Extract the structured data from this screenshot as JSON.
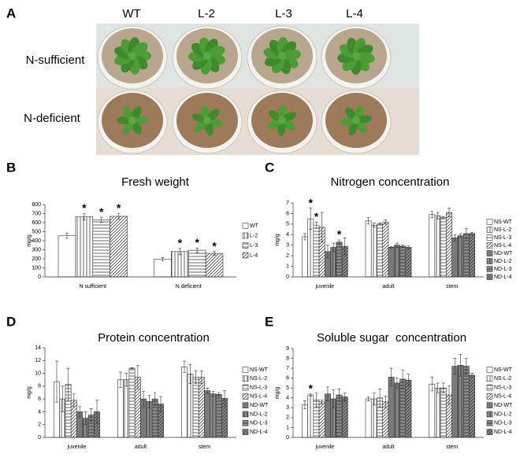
{
  "photo_panel": {
    "panel_label": "A",
    "columns": [
      "WT",
      "L-2",
      "L-3",
      "L-4"
    ],
    "rows": [
      "N-sufficient",
      "N-deficient"
    ]
  },
  "chart_data": [
    {
      "type": "bar",
      "panel_label": "B",
      "title": "Fresh weight",
      "y_label": "mg/g",
      "categories": [
        "N sufficient",
        "N deficient"
      ],
      "series": [
        {
          "name": "WT",
          "color": "#ffffff",
          "pattern": "none",
          "values": [
            455,
            195
          ],
          "error": [
            30,
            20
          ],
          "annotations": [
            null,
            null
          ]
        },
        {
          "name": "L-2",
          "color": "#ffffff",
          "pattern": "vertical",
          "values": [
            665,
            280
          ],
          "error": [
            35,
            35
          ],
          "annotations": [
            "*",
            "*"
          ]
        },
        {
          "name": "L-3",
          "color": "#ffffff",
          "pattern": "horizontal",
          "values": [
            630,
            295
          ],
          "error": [
            30,
            25
          ],
          "annotations": [
            "*",
            "*"
          ]
        },
        {
          "name": "L-4",
          "color": "#ffffff",
          "pattern": "diagonal",
          "values": [
            670,
            260
          ],
          "error": [
            30,
            20
          ],
          "annotations": [
            "*",
            "*"
          ]
        }
      ],
      "ylim": [
        0,
        800
      ],
      "yticks": [
        0,
        100,
        200,
        300,
        400,
        500,
        600,
        700,
        800
      ]
    },
    {
      "type": "bar",
      "panel_label": "C",
      "title": "Nitrogen concentration",
      "y_label": "mg/g",
      "categories": [
        "juvenile",
        "adult",
        "stem"
      ],
      "series": [
        {
          "name": "NS-WT",
          "color": "#ffffff",
          "pattern": "none",
          "values": [
            3.8,
            5.3,
            5.9
          ],
          "error": [
            0.3,
            0.3,
            0.3
          ],
          "annotations": [
            null,
            null,
            null
          ]
        },
        {
          "name": "NS-L-2",
          "color": "#ffffff",
          "pattern": "vertical",
          "values": [
            5.5,
            4.9,
            5.8
          ],
          "error": [
            1.0,
            0.2,
            0.3
          ],
          "annotations": [
            "*",
            null,
            null
          ]
        },
        {
          "name": "NS-L-3",
          "color": "#ffffff",
          "pattern": "horizontal",
          "values": [
            4.9,
            5.0,
            5.6
          ],
          "error": [
            0.3,
            0.1,
            0.1
          ],
          "annotations": [
            "*",
            null,
            null
          ]
        },
        {
          "name": "NS-L-4",
          "color": "#ffffff",
          "pattern": "diagonal",
          "values": [
            4.7,
            5.2,
            6.1
          ],
          "error": [
            1.4,
            0.2,
            0.4
          ],
          "annotations": [
            null,
            null,
            null
          ]
        },
        {
          "name": "ND-WT",
          "color": "#7a7a7a",
          "pattern": "none",
          "values": [
            2.4,
            2.8,
            3.7
          ],
          "error": [
            0.6,
            0.05,
            0.3
          ],
          "annotations": [
            null,
            null,
            null
          ]
        },
        {
          "name": "ND-L-2",
          "color": "#8a8a8a",
          "pattern": "vertical",
          "values": [
            2.8,
            3.0,
            3.9
          ],
          "error": [
            0.4,
            0.2,
            0.2
          ],
          "annotations": [
            null,
            null,
            null
          ]
        },
        {
          "name": "ND-L-3",
          "color": "#8a8a8a",
          "pattern": "horizontal",
          "values": [
            3.3,
            2.9,
            4.1
          ],
          "error": [
            0.2,
            0.1,
            0.5
          ],
          "annotations": [
            "*",
            null,
            null
          ]
        },
        {
          "name": "ND-L-4",
          "color": "#8a8a8a",
          "pattern": "diagonal",
          "values": [
            2.9,
            2.8,
            4.1
          ],
          "error": [
            0.8,
            0.15,
            0.1
          ],
          "annotations": [
            null,
            null,
            null
          ]
        }
      ],
      "ylim": [
        0,
        7
      ],
      "yticks": [
        0,
        1,
        2,
        3,
        4,
        5,
        6,
        7
      ]
    },
    {
      "type": "bar",
      "panel_label": "D",
      "title": "Protein concentration",
      "y_label": "mg/g",
      "categories": [
        "juvenile",
        "adult",
        "stem"
      ],
      "series": [
        {
          "name": "NS-WT",
          "color": "#ffffff",
          "pattern": "none",
          "values": [
            8.7,
            9.0,
            11.0
          ],
          "error": [
            3.2,
            1.2,
            0.9
          ],
          "annotations": [
            null,
            null,
            null
          ]
        },
        {
          "name": "NS-L-2",
          "color": "#ffffff",
          "pattern": "vertical",
          "values": [
            6.0,
            9.0,
            9.9
          ],
          "error": [
            2.0,
            1.0,
            1.5
          ],
          "annotations": [
            null,
            null,
            null
          ]
        },
        {
          "name": "NS-L-3",
          "color": "#ffffff",
          "pattern": "horizontal",
          "values": [
            8.3,
            10.8,
            9.4
          ],
          "error": [
            2.5,
            0.1,
            1.0
          ],
          "annotations": [
            null,
            null,
            null
          ]
        },
        {
          "name": "NS-L-4",
          "color": "#ffffff",
          "pattern": "diagonal",
          "values": [
            5.8,
            9.4,
            9.4
          ],
          "error": [
            1.0,
            1.8,
            1.0
          ],
          "annotations": [
            null,
            null,
            null
          ]
        },
        {
          "name": "ND-WT",
          "color": "#7a7a7a",
          "pattern": "none",
          "values": [
            4.0,
            6.0,
            7.3
          ],
          "error": [
            0.8,
            1.2,
            0.4
          ],
          "annotations": [
            null,
            null,
            null
          ]
        },
        {
          "name": "ND-L-2",
          "color": "#8a8a8a",
          "pattern": "vertical",
          "values": [
            3.0,
            5.6,
            6.8
          ],
          "error": [
            1.0,
            1.0,
            0.4
          ],
          "annotations": [
            null,
            null,
            null
          ]
        },
        {
          "name": "ND-L-3",
          "color": "#8a8a8a",
          "pattern": "horizontal",
          "values": [
            3.5,
            6.0,
            6.7
          ],
          "error": [
            1.0,
            1.0,
            0.3
          ],
          "annotations": [
            null,
            null,
            null
          ]
        },
        {
          "name": "ND-L-4",
          "color": "#8a8a8a",
          "pattern": "diagonal",
          "values": [
            4.0,
            5.2,
            6.1
          ],
          "error": [
            1.8,
            1.2,
            1.2
          ],
          "annotations": [
            null,
            null,
            null
          ]
        }
      ],
      "ylim": [
        0,
        14
      ],
      "yticks": [
        0,
        2,
        4,
        6,
        8,
        10,
        12,
        14
      ]
    },
    {
      "type": "bar",
      "panel_label": "E",
      "title": "Soluble sugar  concentration",
      "y_label": "mg/g",
      "categories": [
        "juvenile",
        "adult",
        "stem"
      ],
      "series": [
        {
          "name": "NS-WT",
          "color": "#ffffff",
          "pattern": "none",
          "values": [
            3.3,
            3.9,
            5.4
          ],
          "error": [
            0.4,
            0.2,
            0.7
          ],
          "annotations": [
            null,
            null,
            null
          ]
        },
        {
          "name": "NS-L-2",
          "color": "#ffffff",
          "pattern": "vertical",
          "values": [
            4.3,
            3.9,
            5.0
          ],
          "error": [
            0.1,
            0.6,
            0.5
          ],
          "annotations": [
            "*",
            null,
            null
          ]
        },
        {
          "name": "NS-L-3",
          "color": "#ffffff",
          "pattern": "horizontal",
          "values": [
            3.8,
            4.0,
            5.0
          ],
          "error": [
            0.7,
            0.9,
            0.5
          ],
          "annotations": [
            null,
            null,
            null
          ]
        },
        {
          "name": "NS-L-4",
          "color": "#ffffff",
          "pattern": "diagonal",
          "values": [
            3.6,
            3.6,
            4.3
          ],
          "error": [
            0.2,
            0.6,
            0.9
          ],
          "annotations": [
            null,
            null,
            null
          ]
        },
        {
          "name": "ND-WT",
          "color": "#7a7a7a",
          "pattern": "none",
          "values": [
            4.4,
            6.1,
            7.2
          ],
          "error": [
            0.7,
            0.9,
            0.8
          ],
          "annotations": [
            null,
            null,
            null
          ]
        },
        {
          "name": "ND-L-2",
          "color": "#8a8a8a",
          "pattern": "vertical",
          "values": [
            3.9,
            5.5,
            7.3
          ],
          "error": [
            0.9,
            0.5,
            1.1
          ],
          "annotations": [
            null,
            null,
            null
          ]
        },
        {
          "name": "ND-L-3",
          "color": "#8a8a8a",
          "pattern": "horizontal",
          "values": [
            4.3,
            5.9,
            7.2
          ],
          "error": [
            0.6,
            0.9,
            0.8
          ],
          "annotations": [
            null,
            null,
            null
          ]
        },
        {
          "name": "ND-L-4",
          "color": "#8a8a8a",
          "pattern": "diagonal",
          "values": [
            4.1,
            5.8,
            6.3
          ],
          "error": [
            0.4,
            0.6,
            0.2
          ],
          "annotations": [
            null,
            null,
            null
          ]
        }
      ],
      "ylim": [
        0,
        9
      ],
      "yticks": [
        0,
        1,
        2,
        3,
        4,
        5,
        6,
        7,
        8,
        9
      ]
    }
  ]
}
